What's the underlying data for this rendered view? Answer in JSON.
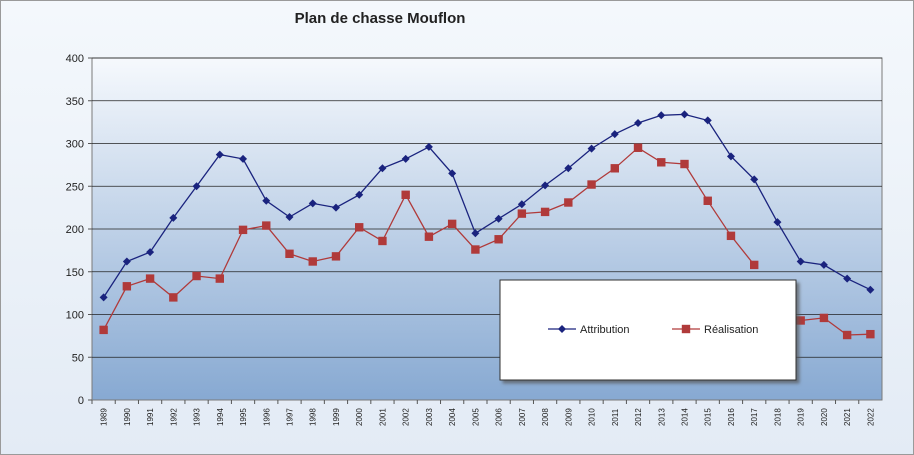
{
  "chart_data": {
    "type": "line",
    "title": "Plan de chasse Mouflon",
    "categories": [
      "1989",
      "1990",
      "1991",
      "1992",
      "1993",
      "1994",
      "1995",
      "1996",
      "1997",
      "1998",
      "1999",
      "2000",
      "2001",
      "2002",
      "2003",
      "2004",
      "2005",
      "2006",
      "2007",
      "2008",
      "2009",
      "2010",
      "2011",
      "2012",
      "2013",
      "2014",
      "2015",
      "2016",
      "2017",
      "2018",
      "2019",
      "2020",
      "2021",
      "2022"
    ],
    "series": [
      {
        "name": "Attribution",
        "color": "#1a237e",
        "marker": "diamond",
        "values": [
          120,
          162,
          173,
          213,
          250,
          287,
          282,
          233,
          214,
          230,
          225,
          240,
          271,
          282,
          296,
          265,
          195,
          212,
          229,
          251,
          271,
          294,
          311,
          324,
          333,
          334,
          327,
          285,
          258,
          208,
          162,
          158,
          142,
          129
        ]
      },
      {
        "name": "Réalisation",
        "color": "#b03a3a",
        "marker": "square",
        "values": [
          82,
          133,
          142,
          120,
          145,
          142,
          199,
          204,
          171,
          162,
          168,
          202,
          186,
          240,
          191,
          206,
          176,
          188,
          218,
          220,
          231,
          252,
          271,
          295,
          278,
          276,
          233,
          192,
          158,
          null,
          93,
          96,
          76,
          77
        ]
      }
    ],
    "yticks": [
      0,
      50,
      100,
      150,
      200,
      250,
      300,
      350,
      400
    ],
    "ylim": [
      0,
      400
    ],
    "grid": true,
    "legend_position": "inside-right"
  }
}
